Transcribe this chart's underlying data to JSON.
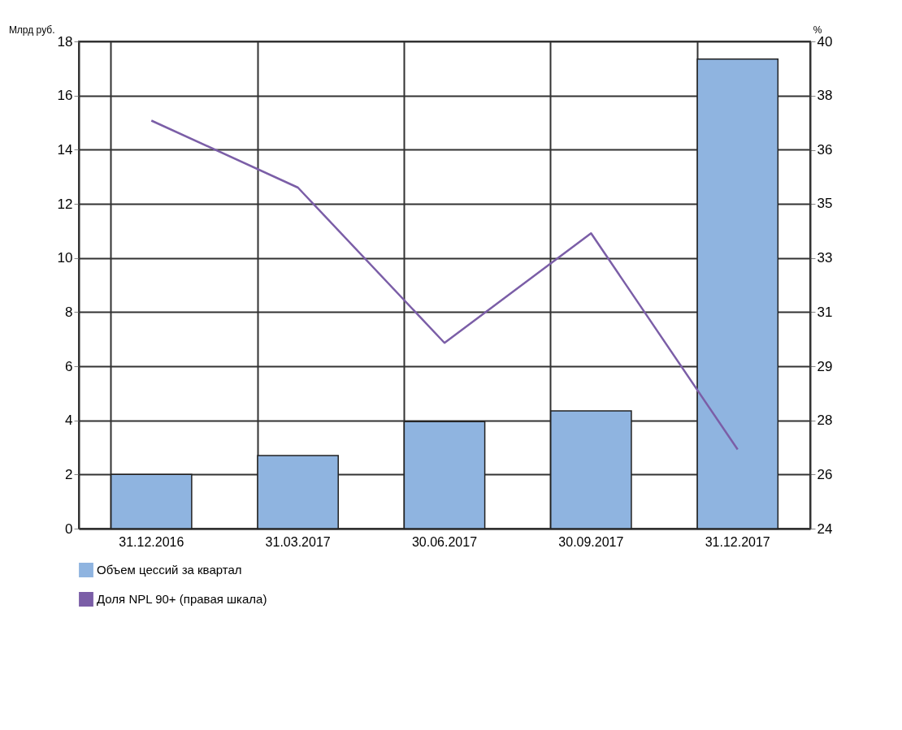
{
  "chart_data": {
    "type": "bar",
    "ylabel": "Млрд руб.",
    "y2label": "%",
    "categories": [
      "31.12.2016",
      "31.03.2017",
      "30.06.2017",
      "30.09.2017",
      "31.12.2017"
    ],
    "series": [
      {
        "name": "Объем цессий за квартал",
        "color": "#8fb4e0",
        "values": [
          2.0,
          2.7,
          3.95,
          4.35,
          17.35
        ]
      },
      {
        "name": "Доля NPL 90+ (правая шкала)",
        "color": "#7b5ea7",
        "type": "line",
        "axis": "y2",
        "values": [
          37.4,
          35.2,
          30.1,
          33.7,
          26.6
        ]
      }
    ],
    "ylim": [
      0,
      18
    ],
    "yticks": [
      0,
      2,
      4,
      6,
      8,
      10,
      12,
      14,
      16,
      18
    ],
    "y2lim": [
      24,
      40
    ],
    "y2ticks": [
      24,
      {
        "value": 25.78,
        "label": "26"
      },
      {
        "value": 27.56,
        "label": "28"
      },
      {
        "value": 29.33,
        "label": "29"
      },
      {
        "value": 31.11,
        "label": "31"
      },
      {
        "value": 32.89,
        "label": "33"
      },
      {
        "value": 34.67,
        "label": "35"
      },
      {
        "value": 36.44,
        "label": "36"
      },
      {
        "value": 38.22,
        "label": "38"
      },
      40
    ],
    "grid": true,
    "legend": "bottom"
  }
}
